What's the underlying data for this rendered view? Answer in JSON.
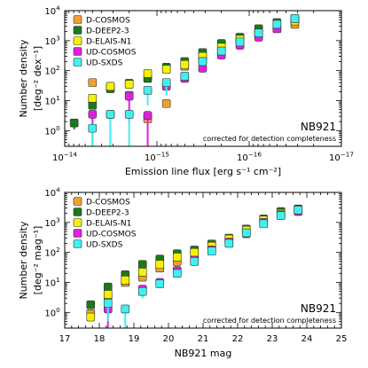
{
  "chart_data": [
    {
      "type": "scatter",
      "xlabel": "Emission line flux [erg s⁻¹ cm⁻²]",
      "ylabel": "Number density",
      "ylabel_unit": "[deg⁻² dex⁻¹]",
      "x_scale": "log",
      "y_scale": "log",
      "x_reversed": true,
      "xlim": [
        1e-14,
        1e-17
      ],
      "ylim": [
        0.3,
        10000
      ],
      "xticks": [
        {
          "v": 1e-14,
          "base": "10",
          "exp": "−14"
        },
        {
          "v": 1e-15,
          "base": "10",
          "exp": "−15"
        },
        {
          "v": 1e-16,
          "base": "10",
          "exp": "−16"
        },
        {
          "v": 1e-17,
          "base": "10",
          "exp": "−17"
        }
      ],
      "yticks": [
        {
          "v": 1,
          "base": "10",
          "exp": "0"
        },
        {
          "v": 10,
          "base": "10",
          "exp": "1"
        },
        {
          "v": 100,
          "base": "10",
          "exp": "2"
        },
        {
          "v": 1000,
          "base": "10",
          "exp": "3"
        },
        {
          "v": 10000,
          "base": "10",
          "exp": "4"
        }
      ],
      "legend_position": "top-left",
      "annotation_title": "NB921",
      "annotation_subtitle": "corrected for detection completeness",
      "series": [
        {
          "name": "D-COSMOS",
          "color": "#f0a030",
          "y_offset": 0,
          "x": [
            5e-15,
            3.2e-15,
            2e-15,
            1.26e-15,
            7.9e-16,
            5e-16,
            3.2e-16,
            2e-16,
            1.26e-16,
            7.9e-17,
            5e-17,
            3.2e-17
          ],
          "y": [
            40,
            28,
            15,
            2.5,
            8,
            140,
            220,
            420,
            900,
            1600,
            2500,
            3500
          ],
          "err_lo": [
            null,
            null,
            null,
            null,
            null,
            null,
            null,
            null,
            null,
            null,
            null,
            null
          ]
        },
        {
          "name": "D-DEEP2-3",
          "color": "#1a7a1a",
          "y_offset": 0,
          "x": [
            7.9e-15,
            5e-15,
            3.2e-15,
            2e-15,
            1.26e-15,
            7.9e-16,
            5e-16,
            3.2e-16,
            2e-16,
            1.26e-16,
            7.9e-17,
            5e-17,
            3.2e-17
          ],
          "y": [
            1.8,
            7,
            25,
            38,
            55,
            130,
            200,
            400,
            800,
            1300,
            2500,
            4000,
            5500
          ],
          "err_lo": [
            0.7,
            null,
            null,
            null,
            null,
            null,
            null,
            null,
            null,
            null,
            null,
            null,
            null
          ]
        },
        {
          "name": "D-ELAIS-N1",
          "color": "#f5f200",
          "y_offset": 0,
          "x": [
            5e-15,
            3.2e-15,
            2e-15,
            1.26e-15,
            7.9e-16,
            5e-16,
            3.2e-16,
            2e-16,
            1.26e-16,
            7.9e-17,
            5e-17,
            3.2e-17
          ],
          "y": [
            12,
            30,
            35,
            80,
            110,
            160,
            300,
            600,
            1100,
            1800,
            3000,
            4500
          ],
          "err_lo": [
            null,
            null,
            null,
            null,
            null,
            null,
            null,
            null,
            null,
            null,
            null,
            null
          ]
        },
        {
          "name": "UD-COSMOS",
          "color": "#e020e0",
          "y_offset": 0,
          "x": [
            5e-15,
            3.2e-15,
            2e-15,
            1.26e-15,
            7.9e-16,
            5e-16,
            3.2e-16,
            2e-16,
            1.26e-16,
            7.9e-17,
            5e-17,
            3.2e-17
          ],
          "y": [
            3.5,
            3.5,
            14,
            3.2,
            30,
            55,
            120,
            330,
            700,
            1300,
            2500,
            5500
          ],
          "err_lo": [
            3.2,
            3.2,
            12,
            3.0,
            null,
            null,
            null,
            null,
            null,
            null,
            null,
            null
          ]
        },
        {
          "name": "UD-SXDS",
          "color": "#40f0f0",
          "y_offset": 0,
          "x": [
            5e-15,
            3.2e-15,
            2e-15,
            1.26e-15,
            7.9e-16,
            5e-16,
            3.2e-16,
            2e-16,
            1.26e-16,
            7.9e-17,
            5e-17,
            3.2e-17
          ],
          "y": [
            1.2,
            3.5,
            3.5,
            22,
            40,
            65,
            200,
            450,
            900,
            1800,
            3500,
            5500
          ],
          "err_lo": [
            1.1,
            3.2,
            3.2,
            15,
            25,
            null,
            null,
            null,
            null,
            null,
            null,
            null
          ]
        }
      ]
    },
    {
      "type": "scatter",
      "xlabel": "NB921 mag",
      "ylabel": "Number density",
      "ylabel_unit": "[deg⁻² mag⁻¹]",
      "x_scale": "linear",
      "y_scale": "log",
      "xlim": [
        17,
        25
      ],
      "ylim": [
        0.3,
        10000
      ],
      "xticks": [
        {
          "v": 17,
          "label": "17"
        },
        {
          "v": 18,
          "label": "18"
        },
        {
          "v": 19,
          "label": "19"
        },
        {
          "v": 20,
          "label": "20"
        },
        {
          "v": 21,
          "label": "21"
        },
        {
          "v": 22,
          "label": "22"
        },
        {
          "v": 23,
          "label": "23"
        },
        {
          "v": 24,
          "label": "24"
        },
        {
          "v": 25,
          "label": "25"
        }
      ],
      "yticks": [
        {
          "v": 1,
          "base": "10",
          "exp": "0"
        },
        {
          "v": 10,
          "base": "10",
          "exp": "1"
        },
        {
          "v": 100,
          "base": "10",
          "exp": "2"
        },
        {
          "v": 1000,
          "base": "10",
          "exp": "3"
        },
        {
          "v": 10000,
          "base": "10",
          "exp": "4"
        }
      ],
      "legend_position": "top-left",
      "annotation_title": "NB921",
      "annotation_subtitle": "corrected for detection completeness",
      "series": [
        {
          "name": "D-COSMOS",
          "color": "#f0a030",
          "x": [
            17.75,
            18.25,
            18.75,
            19.25,
            19.75,
            20.25,
            20.75,
            21.25,
            21.75,
            22.25,
            22.75,
            23.25,
            23.75
          ],
          "y": [
            0.9,
            3.5,
            10,
            15,
            30,
            50,
            90,
            150,
            250,
            500,
            1000,
            1900,
            2500
          ],
          "err_lo": [
            null,
            null,
            null,
            null,
            null,
            null,
            null,
            null,
            null,
            null,
            null,
            null,
            null
          ]
        },
        {
          "name": "D-DEEP2-3",
          "color": "#1a7a1a",
          "x": [
            17.75,
            18.25,
            18.75,
            19.25,
            19.75,
            20.25,
            20.75,
            21.25,
            21.75,
            22.25,
            22.75,
            23.25,
            23.75
          ],
          "y": [
            1.8,
            7,
            18,
            40,
            60,
            90,
            120,
            190,
            300,
            600,
            1300,
            2300,
            2800
          ],
          "err_lo": [
            null,
            null,
            null,
            null,
            null,
            null,
            null,
            null,
            null,
            null,
            null,
            null,
            null
          ]
        },
        {
          "name": "D-ELAIS-N1",
          "color": "#f5f200",
          "x": [
            17.75,
            18.25,
            18.75,
            19.25,
            19.75,
            20.25,
            20.75,
            21.25,
            21.75,
            22.25,
            22.75,
            23.25,
            23.75
          ],
          "y": [
            0.7,
            4,
            12,
            22,
            40,
            70,
            100,
            160,
            280,
            550,
            1200,
            2000,
            2700
          ],
          "err_lo": [
            null,
            null,
            null,
            null,
            null,
            null,
            null,
            null,
            null,
            null,
            null,
            null,
            null
          ]
        },
        {
          "name": "UD-COSMOS",
          "color": "#e020e0",
          "x": [
            17.75,
            18.25,
            18.75,
            19.25,
            19.75,
            20.25,
            20.75,
            21.25,
            21.75,
            22.25,
            22.75,
            23.25,
            23.75
          ],
          "y": [
            null,
            1.3,
            null,
            6,
            10,
            25,
            55,
            120,
            220,
            420,
            1000,
            1800,
            2300
          ],
          "err_lo": [
            null,
            1.0,
            null,
            null,
            null,
            null,
            null,
            null,
            null,
            null,
            null,
            null,
            null
          ]
        },
        {
          "name": "UD-SXDS",
          "color": "#40f0f0",
          "x": [
            17.75,
            18.25,
            18.75,
            19.25,
            19.75,
            20.25,
            20.75,
            21.25,
            21.75,
            22.25,
            22.75,
            23.25,
            23.75
          ],
          "y": [
            null,
            2.0,
            1.3,
            5,
            9,
            20,
            50,
            110,
            200,
            450,
            900,
            1700,
            2600
          ],
          "err_lo": [
            null,
            1.5,
            1.0,
            2,
            null,
            null,
            null,
            null,
            null,
            null,
            null,
            null,
            null
          ]
        }
      ]
    }
  ]
}
